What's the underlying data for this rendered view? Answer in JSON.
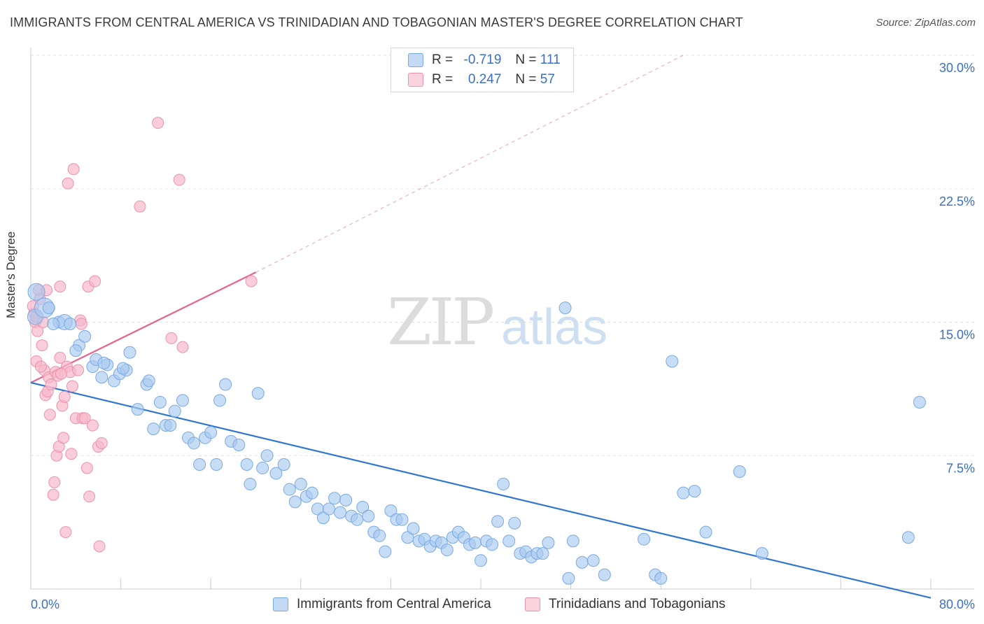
{
  "title": "IMMIGRANTS FROM CENTRAL AMERICA VS TRINIDADIAN AND TOBAGONIAN MASTER'S DEGREE CORRELATION CHART",
  "source": "Source: ZipAtlas.com",
  "watermark": {
    "zip": "ZIP",
    "atlas": "atlas"
  },
  "legend_top": [
    {
      "r_label": "R =",
      "r_value": "-0.719",
      "n_label": "N =",
      "n_value": "111",
      "color": "#a9c9ef"
    },
    {
      "r_label": "R =",
      "r_value": "0.247",
      "n_label": "N =",
      "n_value": "57",
      "color": "#f6b8cb"
    }
  ],
  "colors": {
    "blue_fill": "#a9c9ef",
    "blue_stroke": "#7aaae2",
    "blue_line": "#2f76cf",
    "pink_fill": "#f6b8cb",
    "pink_stroke": "#ee91ad",
    "pink_line": "#e8648e",
    "tick_label": "#3a6fc4",
    "grid": "#e2e2e2"
  },
  "chart_data": {
    "type": "scatter",
    "title": "IMMIGRANTS FROM CENTRAL AMERICA VS TRINIDADIAN AND TOBAGONIAN MASTER'S DEGREE CORRELATION CHART",
    "xlabel": "",
    "ylabel": "Master's Degree",
    "xlim": [
      0,
      80
    ],
    "ylim": [
      0,
      30
    ],
    "x_tick_labels": [
      "0.0%",
      "80.0%"
    ],
    "y_ticks": [
      7.5,
      15.0,
      22.5,
      30.0
    ],
    "y_tick_labels": [
      "7.5%",
      "15.0%",
      "22.5%",
      "30.0%"
    ],
    "grid": true,
    "legend_position": "bottom",
    "series": [
      {
        "name": "Immigrants from Central America",
        "color": "#a9c9ef",
        "trend": {
          "x": [
            0,
            80
          ],
          "y": [
            11.6,
            -0.5
          ],
          "dashed_extension": false
        },
        "points": [
          [
            0.5,
            16.7
          ],
          [
            0.4,
            15.3
          ],
          [
            1.2,
            15.8
          ],
          [
            2.5,
            15.0
          ],
          [
            3.0,
            15.0
          ],
          [
            3.5,
            14.9
          ],
          [
            4.3,
            13.7
          ],
          [
            4.0,
            13.4
          ],
          [
            4.8,
            14.2
          ],
          [
            5.5,
            12.5
          ],
          [
            5.8,
            12.9
          ],
          [
            6.3,
            11.9
          ],
          [
            6.8,
            12.6
          ],
          [
            7.4,
            11.7
          ],
          [
            7.9,
            12.1
          ],
          [
            8.5,
            12.3
          ],
          [
            8.8,
            13.3
          ],
          [
            9.5,
            10.1
          ],
          [
            10.3,
            11.5
          ],
          [
            10.5,
            11.7
          ],
          [
            10.9,
            9.0
          ],
          [
            11.5,
            10.5
          ],
          [
            12.0,
            9.2
          ],
          [
            12.4,
            9.2
          ],
          [
            12.8,
            10.0
          ],
          [
            13.5,
            10.6
          ],
          [
            14.0,
            8.5
          ],
          [
            14.5,
            8.2
          ],
          [
            15.0,
            7.0
          ],
          [
            15.5,
            8.5
          ],
          [
            16.0,
            8.8
          ],
          [
            16.5,
            7.0
          ],
          [
            16.8,
            10.6
          ],
          [
            17.3,
            11.5
          ],
          [
            17.8,
            8.3
          ],
          [
            18.5,
            8.1
          ],
          [
            19.2,
            7.0
          ],
          [
            19.5,
            5.9
          ],
          [
            20.2,
            11.0
          ],
          [
            20.6,
            6.8
          ],
          [
            21.0,
            7.5
          ],
          [
            21.8,
            6.5
          ],
          [
            22.5,
            7.0
          ],
          [
            23.0,
            5.6
          ],
          [
            23.5,
            4.9
          ],
          [
            24.0,
            5.9
          ],
          [
            24.5,
            5.2
          ],
          [
            25.0,
            5.4
          ],
          [
            25.5,
            4.5
          ],
          [
            26.0,
            4.0
          ],
          [
            26.5,
            4.5
          ],
          [
            27.0,
            5.1
          ],
          [
            27.5,
            4.3
          ],
          [
            28.0,
            5.0
          ],
          [
            28.5,
            4.1
          ],
          [
            29.0,
            3.9
          ],
          [
            29.5,
            4.6
          ],
          [
            30.0,
            4.1
          ],
          [
            30.5,
            3.2
          ],
          [
            31.0,
            3.0
          ],
          [
            31.5,
            2.1
          ],
          [
            32.0,
            4.4
          ],
          [
            32.5,
            3.9
          ],
          [
            33.0,
            3.9
          ],
          [
            33.5,
            2.9
          ],
          [
            34.0,
            3.4
          ],
          [
            34.5,
            2.7
          ],
          [
            35.0,
            2.8
          ],
          [
            35.5,
            2.4
          ],
          [
            36.0,
            2.7
          ],
          [
            36.5,
            2.6
          ],
          [
            37.0,
            2.2
          ],
          [
            37.5,
            2.9
          ],
          [
            38.0,
            3.2
          ],
          [
            38.5,
            2.9
          ],
          [
            39.0,
            2.5
          ],
          [
            39.5,
            2.6
          ],
          [
            40.0,
            1.6
          ],
          [
            40.5,
            2.7
          ],
          [
            41.0,
            2.5
          ],
          [
            41.5,
            3.8
          ],
          [
            42.0,
            5.9
          ],
          [
            42.5,
            2.7
          ],
          [
            43.0,
            3.7
          ],
          [
            43.5,
            2.0
          ],
          [
            44.0,
            2.1
          ],
          [
            44.5,
            1.8
          ],
          [
            45.0,
            2.0
          ],
          [
            45.5,
            2.0
          ],
          [
            46.0,
            2.6
          ],
          [
            47.5,
            15.8
          ],
          [
            47.8,
            0.6
          ],
          [
            48.2,
            2.7
          ],
          [
            49.0,
            1.5
          ],
          [
            50.0,
            1.6
          ],
          [
            51.0,
            0.8
          ],
          [
            54.5,
            2.8
          ],
          [
            55.5,
            0.8
          ],
          [
            56.0,
            0.6
          ],
          [
            57.0,
            12.8
          ],
          [
            58.0,
            5.4
          ],
          [
            59.0,
            5.5
          ],
          [
            60.0,
            3.2
          ],
          [
            63.0,
            6.6
          ],
          [
            65.0,
            2.0
          ],
          [
            78.0,
            2.9
          ],
          [
            79.0,
            10.5
          ],
          [
            6.5,
            12.7
          ],
          [
            8.2,
            12.4
          ],
          [
            2.0,
            14.9
          ],
          [
            1.6,
            15.8
          ]
        ]
      },
      {
        "name": "Trinidadians and Tobagonians",
        "color": "#f6b8cb",
        "trend": {
          "x": [
            0,
            20.0
          ],
          "y": [
            11.6,
            17.8
          ],
          "dashed_extension": true,
          "extension_to": [
            58.0,
            30.0
          ]
        },
        "points": [
          [
            0.3,
            15.5
          ],
          [
            0.4,
            15.0
          ],
          [
            0.5,
            15.3
          ],
          [
            0.5,
            12.8
          ],
          [
            0.6,
            14.5
          ],
          [
            0.7,
            16.8
          ],
          [
            0.8,
            16.3
          ],
          [
            1.0,
            13.7
          ],
          [
            1.2,
            12.3
          ],
          [
            1.3,
            10.9
          ],
          [
            1.5,
            11.1
          ],
          [
            1.6,
            11.9
          ],
          [
            1.7,
            9.8
          ],
          [
            1.8,
            11.5
          ],
          [
            2.0,
            5.3
          ],
          [
            2.1,
            6.0
          ],
          [
            2.2,
            12.2
          ],
          [
            2.3,
            7.5
          ],
          [
            2.4,
            12.0
          ],
          [
            2.5,
            8.0
          ],
          [
            2.6,
            13.0
          ],
          [
            2.6,
            17.0
          ],
          [
            2.8,
            10.3
          ],
          [
            2.9,
            8.5
          ],
          [
            3.0,
            10.8
          ],
          [
            3.1,
            3.2
          ],
          [
            3.2,
            12.5
          ],
          [
            3.3,
            22.8
          ],
          [
            3.5,
            12.2
          ],
          [
            3.6,
            7.6
          ],
          [
            3.7,
            11.4
          ],
          [
            3.8,
            23.6
          ],
          [
            4.0,
            9.6
          ],
          [
            4.2,
            12.3
          ],
          [
            4.4,
            15.1
          ],
          [
            4.5,
            14.9
          ],
          [
            4.6,
            9.6
          ],
          [
            4.8,
            9.6
          ],
          [
            5.0,
            6.8
          ],
          [
            5.1,
            17.0
          ],
          [
            5.2,
            5.2
          ],
          [
            5.5,
            9.2
          ],
          [
            5.7,
            17.3
          ],
          [
            6.0,
            8.0
          ],
          [
            6.1,
            2.4
          ],
          [
            6.3,
            8.2
          ],
          [
            9.7,
            21.5
          ],
          [
            11.3,
            26.2
          ],
          [
            12.5,
            14.1
          ],
          [
            13.2,
            23.0
          ],
          [
            13.5,
            13.6
          ],
          [
            19.6,
            17.3
          ],
          [
            1.4,
            16.8
          ],
          [
            0.9,
            12.5
          ],
          [
            1.1,
            15.0
          ],
          [
            2.7,
            12.1
          ],
          [
            0.2,
            15.9
          ]
        ]
      }
    ]
  },
  "bottom_legend": [
    {
      "label": "Immigrants from Central America",
      "color": "#a9c9ef"
    },
    {
      "label": "Trinidadians and Tobagonians",
      "color": "#f6b8cb"
    }
  ]
}
